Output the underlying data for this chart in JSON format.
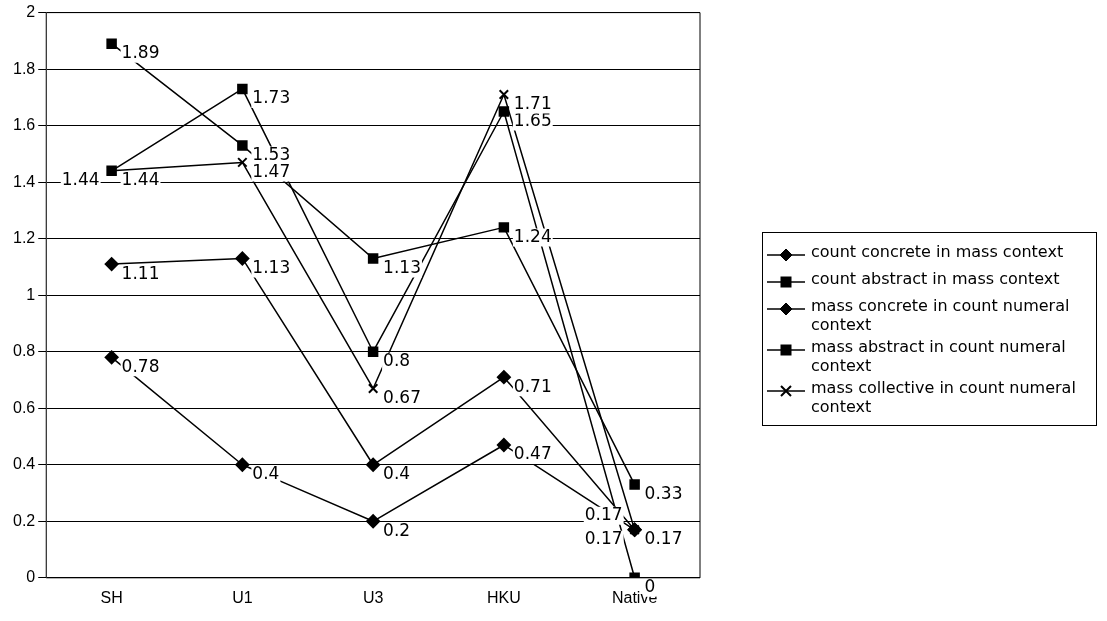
{
  "chart_data": {
    "type": "line",
    "categories": [
      "SH",
      "U1",
      "U3",
      "HKU",
      "Native"
    ],
    "series": [
      {
        "name": "count concrete in mass context",
        "color": "#000000",
        "marker": "diamond",
        "values": [
          0.78,
          0.4,
          0.2,
          0.47,
          0.17
        ]
      },
      {
        "name": "count abstract in mass context",
        "color": "#000000",
        "marker": "square",
        "values": [
          1.89,
          1.53,
          1.13,
          1.24,
          0.33
        ]
      },
      {
        "name": "mass concrete in count numeral context",
        "color": "#000000",
        "marker": "diamond",
        "values": [
          1.11,
          1.13,
          0.4,
          0.71,
          0.17
        ]
      },
      {
        "name": "mass abstract in count numeral context",
        "color": "#000000",
        "marker": "square",
        "values": [
          1.44,
          1.73,
          0.8,
          1.65,
          0
        ]
      },
      {
        "name": "mass collective in count numeral context",
        "color": "#000000",
        "marker": "cross",
        "values": [
          1.44,
          1.47,
          0.67,
          1.71,
          0.17
        ]
      }
    ],
    "ylim": [
      0,
      2
    ],
    "yticks": [
      0,
      0.2,
      0.4,
      0.6,
      0.8,
      1,
      1.2,
      1.4,
      1.6,
      1.8,
      2
    ],
    "grid": "y",
    "legend": "right",
    "data_labels": true
  }
}
